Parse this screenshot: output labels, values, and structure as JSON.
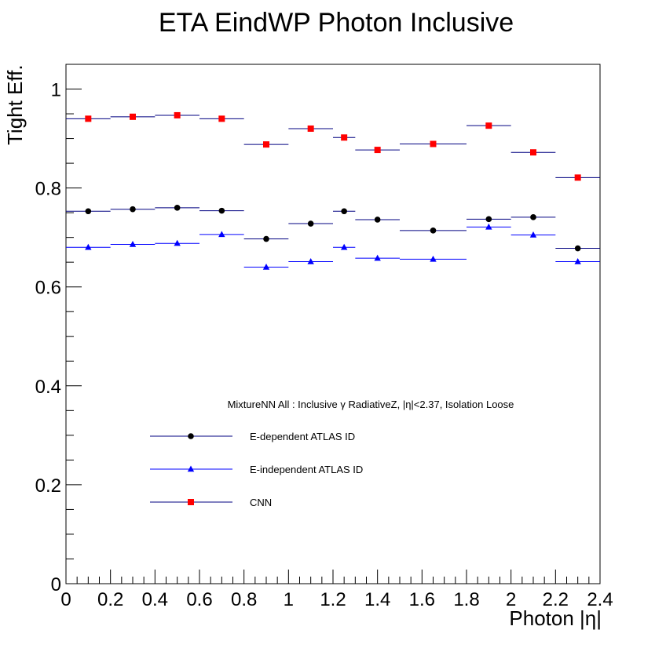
{
  "chart_data": {
    "type": "scatter",
    "title": "ETA EindWP Photon Inclusive",
    "xlabel": "Photon |η|",
    "ylabel": "Tight Eff.",
    "xlim": [
      0,
      2.4
    ],
    "ylim": [
      0,
      1.05
    ],
    "x_ticks": [
      0,
      0.2,
      0.4,
      0.6,
      0.8,
      1,
      1.2,
      1.4,
      1.6,
      1.8,
      2,
      2.2,
      2.4
    ],
    "x_tick_labels": [
      "0",
      "0.2",
      "0.4",
      "0.6",
      "0.8",
      "1",
      "1.2",
      "1.4",
      "1.6",
      "1.8",
      "2",
      "2.2",
      "2.4"
    ],
    "y_ticks": [
      0,
      0.2,
      0.4,
      0.6,
      0.8,
      1
    ],
    "y_tick_labels": [
      "0",
      "0.2",
      "0.4",
      "0.6",
      "0.8",
      "1"
    ],
    "grid": false,
    "legend_header": "MixtureNN All : Inclusive γ RadiativeZ, |η|<2.37, Isolation Loose",
    "legend_position": "center-left",
    "series": [
      {
        "name": "E-dependent ATLAS ID",
        "marker": "circle",
        "color": "#000000",
        "line_color": "#000080",
        "points": [
          {
            "x": 0.1,
            "xlo": 0.0,
            "xhi": 0.2,
            "y": 0.753
          },
          {
            "x": 0.3,
            "xlo": 0.2,
            "xhi": 0.4,
            "y": 0.757
          },
          {
            "x": 0.5,
            "xlo": 0.4,
            "xhi": 0.6,
            "y": 0.76
          },
          {
            "x": 0.7,
            "xlo": 0.6,
            "xhi": 0.8,
            "y": 0.754
          },
          {
            "x": 0.9,
            "xlo": 0.8,
            "xhi": 1.0,
            "y": 0.697
          },
          {
            "x": 1.1,
            "xlo": 1.0,
            "xhi": 1.2,
            "y": 0.728
          },
          {
            "x": 1.25,
            "xlo": 1.2,
            "xhi": 1.3,
            "y": 0.753
          },
          {
            "x": 1.4,
            "xlo": 1.3,
            "xhi": 1.5,
            "y": 0.736
          },
          {
            "x": 1.65,
            "xlo": 1.5,
            "xhi": 1.8,
            "y": 0.714
          },
          {
            "x": 1.9,
            "xlo": 1.8,
            "xhi": 2.0,
            "y": 0.737
          },
          {
            "x": 2.1,
            "xlo": 2.0,
            "xhi": 2.2,
            "y": 0.741
          },
          {
            "x": 2.3,
            "xlo": 2.2,
            "xhi": 2.4,
            "y": 0.678
          }
        ]
      },
      {
        "name": "E-independent ATLAS ID",
        "marker": "triangle",
        "color": "#0000ff",
        "line_color": "#0000ff",
        "points": [
          {
            "x": 0.1,
            "xlo": 0.0,
            "xhi": 0.2,
            "y": 0.68
          },
          {
            "x": 0.3,
            "xlo": 0.2,
            "xhi": 0.4,
            "y": 0.686
          },
          {
            "x": 0.5,
            "xlo": 0.4,
            "xhi": 0.6,
            "y": 0.688
          },
          {
            "x": 0.7,
            "xlo": 0.6,
            "xhi": 0.8,
            "y": 0.706
          },
          {
            "x": 0.9,
            "xlo": 0.8,
            "xhi": 1.0,
            "y": 0.64
          },
          {
            "x": 1.1,
            "xlo": 1.0,
            "xhi": 1.2,
            "y": 0.651
          },
          {
            "x": 1.25,
            "xlo": 1.2,
            "xhi": 1.3,
            "y": 0.68
          },
          {
            "x": 1.4,
            "xlo": 1.3,
            "xhi": 1.5,
            "y": 0.658
          },
          {
            "x": 1.65,
            "xlo": 1.5,
            "xhi": 1.8,
            "y": 0.656
          },
          {
            "x": 1.9,
            "xlo": 1.8,
            "xhi": 2.0,
            "y": 0.721
          },
          {
            "x": 2.1,
            "xlo": 2.0,
            "xhi": 2.2,
            "y": 0.705
          },
          {
            "x": 2.3,
            "xlo": 2.2,
            "xhi": 2.4,
            "y": 0.651
          }
        ]
      },
      {
        "name": "CNN",
        "marker": "square",
        "color": "#ff0000",
        "line_color": "#000080",
        "points": [
          {
            "x": 0.1,
            "xlo": 0.0,
            "xhi": 0.2,
            "y": 0.94
          },
          {
            "x": 0.3,
            "xlo": 0.2,
            "xhi": 0.4,
            "y": 0.944
          },
          {
            "x": 0.5,
            "xlo": 0.4,
            "xhi": 0.6,
            "y": 0.947
          },
          {
            "x": 0.7,
            "xlo": 0.6,
            "xhi": 0.8,
            "y": 0.94
          },
          {
            "x": 0.9,
            "xlo": 0.8,
            "xhi": 1.0,
            "y": 0.888
          },
          {
            "x": 1.1,
            "xlo": 1.0,
            "xhi": 1.2,
            "y": 0.92
          },
          {
            "x": 1.25,
            "xlo": 1.2,
            "xhi": 1.3,
            "y": 0.902
          },
          {
            "x": 1.4,
            "xlo": 1.3,
            "xhi": 1.5,
            "y": 0.877
          },
          {
            "x": 1.65,
            "xlo": 1.5,
            "xhi": 1.8,
            "y": 0.889
          },
          {
            "x": 1.9,
            "xlo": 1.8,
            "xhi": 2.0,
            "y": 0.926
          },
          {
            "x": 2.1,
            "xlo": 2.0,
            "xhi": 2.2,
            "y": 0.872
          },
          {
            "x": 2.3,
            "xlo": 2.2,
            "xhi": 2.4,
            "y": 0.821
          }
        ]
      }
    ]
  }
}
